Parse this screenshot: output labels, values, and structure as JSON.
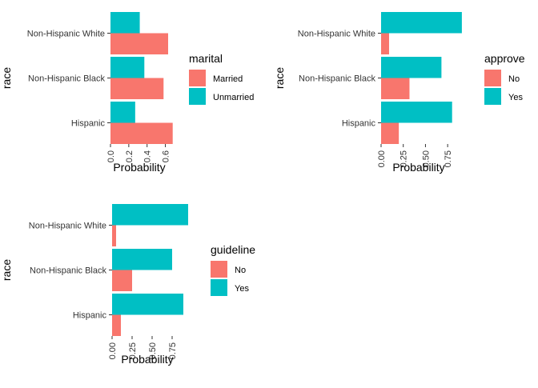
{
  "colors": {
    "series0": "#F8766D",
    "series1": "#00BFC4",
    "tick": "#333333",
    "text": "#000000"
  },
  "chart_data": [
    {
      "type": "bar",
      "orientation": "horizontal",
      "categories": [
        "Non-Hispanic White",
        "Non-Hispanic Black",
        "Hispanic"
      ],
      "xlabel": "Probability",
      "ylabel": "race",
      "xlim": [
        0,
        0.7
      ],
      "xticks": [
        "0.0",
        "0.2",
        "0.4",
        "0.6"
      ],
      "grid": false,
      "legend_title": "marital",
      "legend_position": "right",
      "series": [
        {
          "name": "Married",
          "values": [
            0.63,
            0.58,
            0.68
          ]
        },
        {
          "name": "Unmarried",
          "values": [
            0.32,
            0.37,
            0.27
          ]
        }
      ]
    },
    {
      "type": "bar",
      "orientation": "horizontal",
      "categories": [
        "Non-Hispanic White",
        "Non-Hispanic Black",
        "Hispanic"
      ],
      "xlabel": "Probability",
      "ylabel": "race",
      "xlim": [
        0,
        0.92
      ],
      "xticks": [
        "0.00",
        "0.25",
        "0.50",
        "0.75"
      ],
      "grid": false,
      "legend_title": "approve",
      "legend_position": "right",
      "series": [
        {
          "name": "No",
          "values": [
            0.09,
            0.32,
            0.2
          ]
        },
        {
          "name": "Yes",
          "values": [
            0.91,
            0.68,
            0.8
          ]
        }
      ]
    },
    {
      "type": "bar",
      "orientation": "horizontal",
      "categories": [
        "Non-Hispanic White",
        "Non-Hispanic Black",
        "Hispanic"
      ],
      "xlabel": "Probability",
      "ylabel": "race",
      "xlim": [
        0,
        0.96
      ],
      "xticks": [
        "0.00",
        "0.25",
        "0.50",
        "0.75"
      ],
      "grid": false,
      "legend_title": "guideline",
      "legend_position": "right",
      "series": [
        {
          "name": "No",
          "values": [
            0.05,
            0.25,
            0.11
          ]
        },
        {
          "name": "Yes",
          "values": [
            0.95,
            0.75,
            0.89
          ]
        }
      ]
    }
  ]
}
